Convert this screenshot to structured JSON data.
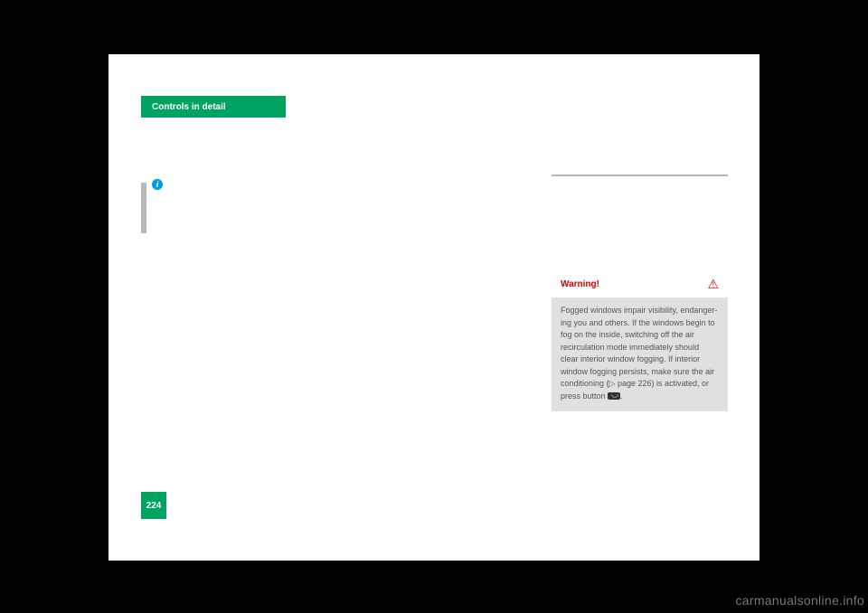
{
  "tab": {
    "label": "Controls in detail"
  },
  "info_icon_glyph": "i",
  "warning": {
    "title": "Warning!",
    "triangle_glyph": "⚠",
    "body_parts": {
      "t1": "Fogged windows impair visibility, endanger-ing you and others. If the windows begin to fog on the inside, switching off the air recirculation mode immediately should clear interior window fogging. If interior window fogging persists, make sure the air conditioning (",
      "ref_glyph": "▷",
      "ref": " page 226) is activated, or press button ",
      "t2": "."
    }
  },
  "page_number": "224",
  "watermark": "carmanualsonline.info",
  "colors": {
    "accent": "#00a361",
    "warning_bg": "#e0e0e0",
    "warning_text": "#d50000",
    "info_blue": "#0099e5",
    "body_text": "#555",
    "gray_bar": "#b8b8b8"
  }
}
